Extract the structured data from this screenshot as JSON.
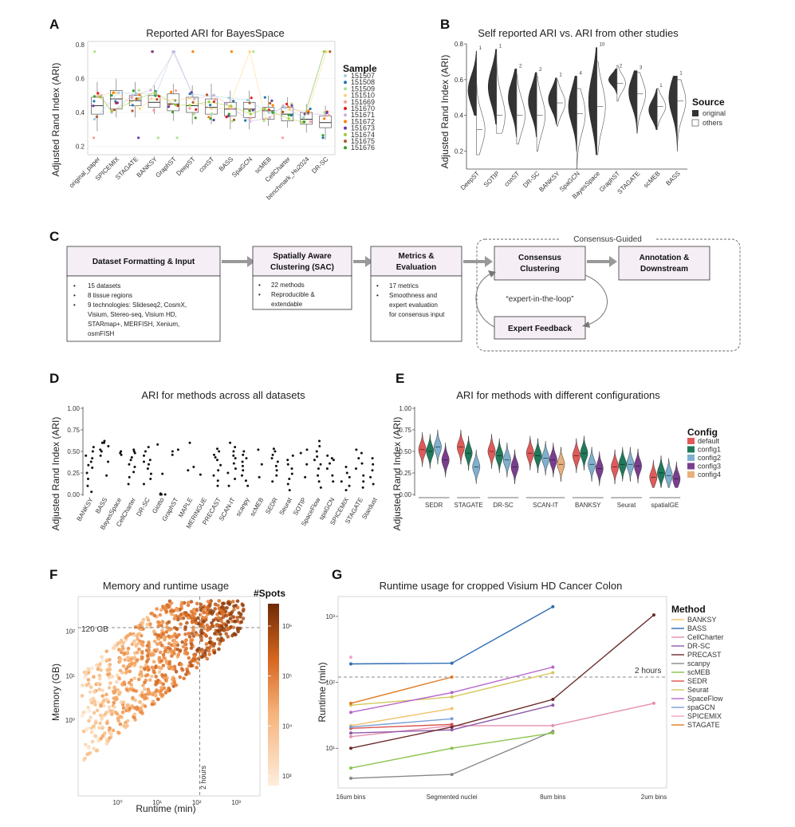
{
  "panels": {
    "A": "A",
    "B": "B",
    "C": "C",
    "D": "D",
    "E": "E",
    "F": "F",
    "G": "G"
  },
  "colors": {
    "violin_dark": "#333333",
    "flow_box_fill": "#f5eef5",
    "arrow": "#999999",
    "config": [
      "#e05a5a",
      "#1f7a5a",
      "#7fb0cf",
      "#7a3e8e",
      "#e8b07a"
    ],
    "spots_low": "#fbe5cc",
    "spots_high": "#7a2e08"
  },
  "panelA": {
    "title": "Reported ARI for BayesSpace",
    "ylabel": "Adjusted Rand Index (ARI)",
    "legend_title": "Sample",
    "chart_data": {
      "type": "box",
      "categories": [
        "original_paper",
        "SPICEMIX",
        "STAGATE",
        "BANKSY",
        "GraphST",
        "DeepST",
        "conST",
        "BASS",
        "SpaGCN",
        "scMEB",
        "CellCharter",
        "benchmark_Hu2024",
        "DR-SC"
      ],
      "median": [
        0.44,
        0.48,
        0.47,
        0.46,
        0.45,
        0.44,
        0.43,
        0.42,
        0.42,
        0.41,
        0.39,
        0.36,
        0.34
      ],
      "q1": [
        0.39,
        0.42,
        0.44,
        0.43,
        0.41,
        0.4,
        0.39,
        0.38,
        0.37,
        0.36,
        0.35,
        0.33,
        0.31
      ],
      "q3": [
        0.49,
        0.53,
        0.5,
        0.5,
        0.51,
        0.49,
        0.48,
        0.46,
        0.46,
        0.43,
        0.43,
        0.4,
        0.38
      ],
      "whisker_low": [
        0.29,
        0.37,
        0.37,
        0.39,
        0.35,
        0.33,
        0.33,
        0.3,
        0.3,
        0.32,
        0.31,
        0.28,
        0.24
      ],
      "whisker_high": [
        0.58,
        0.6,
        0.58,
        0.56,
        0.57,
        0.56,
        0.57,
        0.53,
        0.53,
        0.5,
        0.49,
        0.45,
        0.44
      ],
      "yticks": [
        0.2,
        0.4,
        0.6,
        0.8
      ],
      "ylim": [
        0.15,
        0.82
      ],
      "series": [
        {
          "name": "151507",
          "color": "#a6cee3"
        },
        {
          "name": "151508",
          "color": "#1f78b4"
        },
        {
          "name": "151509",
          "color": "#b2df8a"
        },
        {
          "name": "151510",
          "color": "#ffd27f"
        },
        {
          "name": "151669",
          "color": "#fb9a99"
        },
        {
          "name": "151670",
          "color": "#e31a1c"
        },
        {
          "name": "151671",
          "color": "#cab2d6"
        },
        {
          "name": "151672",
          "color": "#ff7f00"
        },
        {
          "name": "151673",
          "color": "#6a3d9a"
        },
        {
          "name": "151674",
          "color": "#9acd32"
        },
        {
          "name": "151675",
          "color": "#b15928"
        },
        {
          "name": "151676",
          "color": "#33a02c"
        }
      ]
    }
  },
  "panelB": {
    "title": "Self reported ARI vs. ARI from other studies",
    "ylabel": "Adjusted Rand Index (ARI)",
    "legend_title": "Source",
    "legend": [
      "original",
      "others"
    ],
    "chart_data": {
      "type": "split_violin",
      "categories": [
        "DeepST",
        "SOTIP",
        "conST",
        "DR-SC",
        "BANKSY",
        "SpaGCN",
        "BayesSpace",
        "GraphST",
        "STAGATE",
        "scMEB",
        "BASS"
      ],
      "counts": [
        "1",
        "1",
        "2",
        "2",
        "1",
        "4",
        "10",
        "2",
        "3",
        "1",
        "1"
      ],
      "original_center": [
        0.54,
        0.56,
        0.5,
        0.48,
        0.49,
        0.45,
        0.48,
        0.6,
        0.53,
        0.43,
        0.5
      ],
      "original_range": [
        [
          0.4,
          0.76
        ],
        [
          0.35,
          0.77
        ],
        [
          0.28,
          0.66
        ],
        [
          0.28,
          0.64
        ],
        [
          0.35,
          0.61
        ],
        [
          0.2,
          0.62
        ],
        [
          0.18,
          0.78
        ],
        [
          0.52,
          0.66
        ],
        [
          0.3,
          0.65
        ],
        [
          0.32,
          0.55
        ],
        [
          0.2,
          0.62
        ]
      ],
      "others_center": [
        0.32,
        0.4,
        0.4,
        0.4,
        0.47,
        0.41,
        0.45,
        0.58,
        0.52,
        0.45,
        0.48
      ],
      "others_range": [
        [
          0.18,
          0.58
        ],
        [
          0.3,
          0.75
        ],
        [
          0.24,
          0.63
        ],
        [
          0.2,
          0.62
        ],
        [
          0.34,
          0.6
        ],
        [
          0.1,
          0.55
        ],
        [
          0.18,
          0.7
        ],
        [
          0.48,
          0.68
        ],
        [
          0.3,
          0.64
        ],
        [
          0.34,
          0.55
        ],
        [
          0.22,
          0.6
        ]
      ],
      "yticks": [
        0.2,
        0.4,
        0.6,
        0.8
      ],
      "ylim": [
        0.1,
        0.8
      ]
    }
  },
  "panelC": {
    "consensus_label": "Consensus-Guided",
    "loop_label": "“expert-in-the-loop”",
    "boxes": {
      "format_title": "Dataset Formatting & Input",
      "format_bullets": [
        "15 datasets",
        "8 tissue regions",
        "9 technologies: Slideseq2, CosmX,",
        "Visium, Stereo-seq, Visium HD,",
        "STARmap+, MERFISH, Xenium,",
        "osmFISH"
      ],
      "sac_title1": "Spatially Aware",
      "sac_title2": "Clustering (SAC)",
      "sac_bullets": [
        "22 methods",
        "Reproducible &",
        "extendable"
      ],
      "metrics_title1": "Metrics &",
      "metrics_title2": "Evaluation",
      "metrics_bullets": [
        "17 metrics",
        "Smoothness and",
        "expert evaluation",
        "for consensus input"
      ],
      "consensus_title1": "Consensus",
      "consensus_title2": "Clustering",
      "annotation_title1": "Annotation &",
      "annotation_title2": "Downstream",
      "expert_title": "Expert Feedback",
      "bullet_char": "•"
    }
  },
  "panelD": {
    "title": "ARI for methods across all datasets",
    "ylabel": "Adjusted Rand Index (ARI)",
    "chart_data": {
      "type": "strip",
      "categories": [
        "BANKSY",
        "BASS",
        "BayesSpace",
        "CellCharter",
        "DR-SC",
        "Giotto",
        "GraphST",
        "MAPLE",
        "MERINGUE",
        "PRECAST",
        "SCAN-IT",
        "scanpy",
        "scMEB",
        "SEDR",
        "Seurat",
        "SOTIP",
        "SpaceFlow",
        "spaGCN",
        "SPICEMIX",
        "STAGATE",
        "Stardust"
      ],
      "points": [
        [
          0.03,
          0.1,
          0.18,
          0.25,
          0.31,
          0.34,
          0.38,
          0.42,
          0.45,
          0.5,
          0.55
        ],
        [
          0.22,
          0.38,
          0.45,
          0.5,
          0.52,
          0.56,
          0.6,
          0.6,
          0.62
        ],
        [
          0.46,
          0.48,
          0.5
        ],
        [
          0.12,
          0.2,
          0.26,
          0.32,
          0.35,
          0.4,
          0.43,
          0.48,
          0.5,
          0.52
        ],
        [
          0.12,
          0.18,
          0.24,
          0.3,
          0.35,
          0.38,
          0.4,
          0.45,
          0.5,
          0.55
        ],
        [
          0.0,
          0.0,
          0.0,
          0.01,
          0.0,
          0.24,
          0.58
        ],
        [
          0.46,
          0.5,
          0.52
        ],
        [
          0.28,
          0.32,
          0.6
        ],
        [
          0.23
        ],
        [
          0.1,
          0.16,
          0.22,
          0.28,
          0.34,
          0.4,
          0.43,
          0.46,
          0.5,
          0.53
        ],
        [
          0.1,
          0.18,
          0.25,
          0.3,
          0.36,
          0.42,
          0.45,
          0.5,
          0.55,
          0.6
        ],
        [
          0.1,
          0.16,
          0.22,
          0.28,
          0.33,
          0.38,
          0.42,
          0.46,
          0.5
        ],
        [
          0.2,
          0.35,
          0.52
        ],
        [
          0.15,
          0.22,
          0.28,
          0.33,
          0.38,
          0.42,
          0.46,
          0.5,
          0.53
        ],
        [
          0.05,
          0.12,
          0.18,
          0.24,
          0.3,
          0.35,
          0.4,
          0.45
        ],
        [
          0.2,
          0.35,
          0.48,
          0.52
        ],
        [
          0.08,
          0.15,
          0.22,
          0.3,
          0.35,
          0.4,
          0.44,
          0.5,
          0.56,
          0.62
        ],
        [
          0.15,
          0.22,
          0.3,
          0.36,
          0.4,
          0.42,
          0.45
        ],
        [
          0.05,
          0.1,
          0.15,
          0.2,
          0.25,
          0.32
        ],
        [
          0.08,
          0.15,
          0.22,
          0.3,
          0.36,
          0.42,
          0.48,
          0.52
        ],
        [
          0.12,
          0.2,
          0.28,
          0.35,
          0.42
        ]
      ],
      "yticks": [
        0,
        0.25,
        0.5,
        0.75,
        1.0
      ],
      "ytick_labels": [
        "0.00",
        "0.25",
        "0.50",
        "0.75",
        "1.00"
      ],
      "ylim": [
        0,
        1
      ]
    }
  },
  "panelE": {
    "title": "ARI for methods with different configurations",
    "ylabel": "Adjusted Rand Index (ARI)",
    "legend_title": "Config",
    "chart_data": {
      "type": "violin",
      "categories": [
        "SEDR",
        "STAGATE",
        "DR-SC",
        "SCAN-IT",
        "BANKSY",
        "Seurat",
        "spatialGE"
      ],
      "configs": [
        "default",
        "config1",
        "config2",
        "config3",
        "config4"
      ],
      "configs_per_method": [
        4,
        3,
        4,
        5,
        4,
        4,
        4
      ],
      "medians": [
        [
          0.52,
          0.5,
          0.55,
          0.4
        ],
        [
          0.55,
          0.48,
          0.32
        ],
        [
          0.5,
          0.45,
          0.4,
          0.32
        ],
        [
          0.48,
          0.45,
          0.42,
          0.4,
          0.35
        ],
        [
          0.45,
          0.48,
          0.35,
          0.3
        ],
        [
          0.32,
          0.35,
          0.35,
          0.33
        ],
        [
          0.2,
          0.25,
          0.22,
          0.18
        ]
      ],
      "yticks": [
        0,
        0.25,
        0.5,
        0.75,
        1.0
      ],
      "ytick_labels": [
        "0.00",
        "0.25",
        "0.50",
        "0.75",
        "1.00"
      ],
      "ylim": [
        0,
        1
      ]
    }
  },
  "panelF": {
    "title": "Memory and runtime usage",
    "xlabel": "Runtime (min)",
    "ylabel": "Memory (GB)",
    "legend_title": "#Spots",
    "hline_label": "120 GB",
    "vline_label": "2 hours",
    "chart_data": {
      "type": "scatter",
      "xscale": "log",
      "yscale": "log",
      "xlim": [
        0.1,
        4000
      ],
      "ylim": [
        0.02,
        600
      ],
      "xticks": [
        "10⁰",
        "10¹",
        "10²",
        "10³"
      ],
      "yticks": [
        "10⁰",
        "10¹",
        "10²"
      ],
      "colorbar_ticks": [
        "10³",
        "10⁴",
        "10⁵",
        "10⁶"
      ],
      "hline": 120,
      "vline": 120
    }
  },
  "panelG": {
    "title": "Runtime usage for cropped Visium HD Cancer Colon",
    "ylabel": "Runtime (min)",
    "legend_title": "Method",
    "hline_label": "2 hours",
    "chart_data": {
      "type": "line",
      "yscale": "log",
      "x": [
        "16um bins",
        "Segmented nuclei",
        "8um bins",
        "2um bins"
      ],
      "yticks": [
        "10¹",
        "10²",
        "10³"
      ],
      "ylim": [
        2.5,
        2000
      ],
      "hline": 120,
      "series": [
        {
          "name": "BANKSY",
          "color": "#f2c26b",
          "values": [
            22,
            40,
            null,
            null
          ]
        },
        {
          "name": "BASS",
          "color": "#2e6db4",
          "values": [
            190,
            195,
            1400,
            null
          ]
        },
        {
          "name": "CellCharter",
          "color": "#e58fb2",
          "values": [
            15,
            22,
            22,
            48
          ]
        },
        {
          "name": "DR-SC",
          "color": "#8e5aa8",
          "values": [
            17,
            19,
            45,
            null
          ]
        },
        {
          "name": "PRECAST",
          "color": "#6b2a2a",
          "values": [
            10,
            21,
            55,
            1050
          ]
        },
        {
          "name": "scanpy",
          "color": "#888888",
          "values": [
            3.5,
            4,
            18,
            null
          ]
        },
        {
          "name": "scMEB",
          "color": "#8bc34a",
          "values": [
            5,
            10,
            17,
            null
          ]
        },
        {
          "name": "SEDR",
          "color": "#d9534f",
          "values": [
            20,
            23,
            null,
            null
          ]
        },
        {
          "name": "Seurat",
          "color": "#d4c85a",
          "values": [
            45,
            60,
            140,
            null
          ]
        },
        {
          "name": "SpaceFlow",
          "color": "#b565c9",
          "values": [
            35,
            70,
            170,
            null
          ]
        },
        {
          "name": "spaGCN",
          "color": "#7a9fd6",
          "values": [
            21,
            28,
            null,
            null
          ]
        },
        {
          "name": "SPICEMIX",
          "color": "#f5a3c7",
          "values": [
            240,
            null,
            null,
            null
          ]
        },
        {
          "name": "STAGATE",
          "color": "#e07b22",
          "values": [
            48,
            120,
            null,
            null
          ]
        }
      ]
    }
  }
}
